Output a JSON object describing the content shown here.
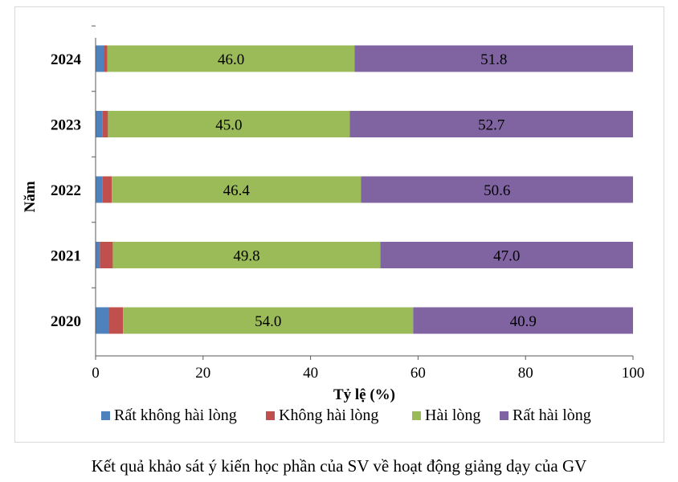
{
  "chart_data": {
    "type": "bar",
    "orientation": "horizontal",
    "stacked": true,
    "categories": [
      "2024",
      "2023",
      "2022",
      "2021",
      "2020"
    ],
    "series": [
      {
        "name": "Rất không hài lòng",
        "color": "#4f81bd",
        "values": [
          1.5,
          1.3,
          1.3,
          0.8,
          2.4
        ]
      },
      {
        "name": "Không hài lòng",
        "color": "#c0504d",
        "values": [
          0.7,
          1.0,
          1.7,
          2.4,
          2.7
        ]
      },
      {
        "name": "Hài lòng",
        "color": "#9bbb59",
        "values": [
          46.0,
          45.0,
          46.4,
          49.8,
          54.0
        ],
        "labels": [
          "46.0",
          "45.0",
          "46.4",
          "49.8",
          "54.0"
        ]
      },
      {
        "name": "Rất hài lòng",
        "color": "#8064a2",
        "values": [
          51.8,
          52.7,
          50.6,
          47.0,
          40.9
        ],
        "labels": [
          "51.8",
          "52.7",
          "50.6",
          "47.0",
          "40.9"
        ]
      }
    ],
    "xlabel": "Tỷ lệ (%)",
    "ylabel": "Năm",
    "xlim": [
      0,
      100
    ],
    "xticks": [
      "0",
      "20",
      "40",
      "60",
      "80",
      "100"
    ],
    "grid": false,
    "legend_position": "bottom"
  },
  "caption": "Kết quả khảo sát ý kiến học phần của SV về hoạt động giảng dạy của GV"
}
